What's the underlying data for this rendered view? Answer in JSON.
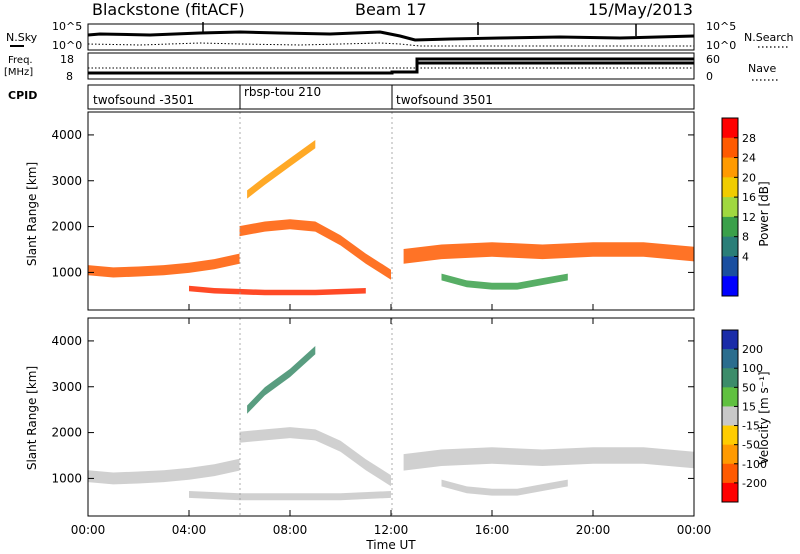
{
  "header": {
    "station": "Blackstone (fitACF)",
    "beam": "Beam 17",
    "date": "15/May/2013"
  },
  "noise_panel": {
    "left_label": "N.Sky",
    "right_label": "N.Search",
    "left_ticks": [
      "10^5",
      "10^0"
    ],
    "right_ticks": [
      "10^5",
      "10^0"
    ]
  },
  "freq_panel": {
    "label_line1": "Freq.",
    "label_line2": "[MHz]",
    "right_label": "Nave",
    "left_ticks": [
      "18",
      "8"
    ],
    "right_ticks": [
      "60",
      "0"
    ]
  },
  "cpid": {
    "label": "CPID",
    "segments": [
      {
        "name": "twofsound -3501",
        "start": "00:00",
        "end": "06:00"
      },
      {
        "name": "rbsp-tou 210",
        "start": "06:00",
        "end": "12:00"
      },
      {
        "name": "twofsound 3501",
        "start": "12:00",
        "end": "24:00"
      }
    ]
  },
  "x_axis": {
    "label": "Time UT",
    "ticks": [
      "00:00",
      "04:00",
      "08:00",
      "12:00",
      "16:00",
      "20:00",
      "00:00"
    ]
  },
  "colorbars": {
    "power": {
      "label": "Power [dB]",
      "ticks": [
        "28",
        "24",
        "20",
        "16",
        "12",
        "8",
        "4"
      ],
      "colors": [
        "#ff0000",
        "#ff5a00",
        "#ff9a00",
        "#f0cc00",
        "#a0d840",
        "#3aa04a",
        "#2a7e78",
        "#1a4fa0",
        "#0000ff"
      ]
    },
    "velocity": {
      "label": "Velocity [m s⁻¹]",
      "ticks": [
        "200",
        "100",
        "50",
        "15",
        "-15",
        "-50",
        "-100",
        "-200"
      ],
      "colors": [
        "#1a2ca8",
        "#2b6d8e",
        "#3c8c6a",
        "#60c040",
        "#c8c8c8",
        "#ffcc00",
        "#ff9a00",
        "#ff5a00",
        "#ff0000"
      ]
    }
  },
  "chart_data": [
    {
      "type": "heatmap",
      "name": "power",
      "ylabel": "Slant Range [km]",
      "xlabel": "",
      "xlim": [
        0,
        24
      ],
      "ylim": [
        180,
        4500
      ],
      "yticks": [
        1000,
        2000,
        3000,
        4000
      ],
      "bands": [
        {
          "t": [
            0,
            1,
            2,
            3,
            4,
            5,
            6
          ],
          "r": [
            1050,
            1000,
            1020,
            1050,
            1100,
            1180,
            1300
          ],
          "width": 220,
          "color": "#ff5a00"
        },
        {
          "t": [
            6,
            7,
            8,
            9,
            10,
            11,
            12
          ],
          "r": [
            1900,
            2000,
            2050,
            2000,
            1700,
            1300,
            950
          ],
          "width": 220,
          "color": "#ff5a00"
        },
        {
          "t": [
            6.3,
            7,
            8,
            9
          ],
          "r": [
            2700,
            3000,
            3400,
            3800
          ],
          "width": 180,
          "color": "#ff9a00"
        },
        {
          "t": [
            4,
            5,
            6,
            7,
            8,
            9,
            10,
            11
          ],
          "r": [
            650,
            600,
            580,
            560,
            560,
            560,
            580,
            600
          ],
          "width": 120,
          "color": "#ff2a00"
        },
        {
          "t": [
            12.5,
            14,
            16,
            18,
            20,
            22,
            24
          ],
          "r": [
            1350,
            1450,
            1500,
            1450,
            1500,
            1500,
            1400
          ],
          "width": 320,
          "color": "#ff5a00"
        },
        {
          "t": [
            14,
            15,
            16,
            17,
            18,
            19
          ],
          "r": [
            900,
            750,
            700,
            700,
            800,
            900
          ],
          "width": 150,
          "color": "#3aa04a"
        }
      ]
    },
    {
      "type": "heatmap",
      "name": "velocity",
      "ylabel": "Slant Range [km]",
      "xlabel": "Time UT",
      "xlim": [
        0,
        24
      ],
      "ylim": [
        180,
        4500
      ],
      "yticks": [
        1000,
        2000,
        3000,
        4000
      ],
      "bands": [
        {
          "t": [
            0,
            1,
            2,
            3,
            4,
            5,
            6
          ],
          "r": [
            1050,
            1000,
            1020,
            1050,
            1100,
            1180,
            1300
          ],
          "width": 260,
          "color": "#c8c8c8"
        },
        {
          "t": [
            6,
            7,
            8,
            9,
            10,
            11,
            12
          ],
          "r": [
            1900,
            1950,
            2000,
            1950,
            1700,
            1300,
            950
          ],
          "width": 240,
          "color": "#c8c8c8"
        },
        {
          "t": [
            6.3,
            7,
            8,
            9
          ],
          "r": [
            2500,
            2900,
            3300,
            3800
          ],
          "width": 180,
          "color": "#3c8c6a"
        },
        {
          "t": [
            4,
            6,
            8,
            10,
            12
          ],
          "r": [
            650,
            600,
            600,
            600,
            650
          ],
          "width": 150,
          "color": "#c8c8c8"
        },
        {
          "t": [
            12.5,
            14,
            16,
            18,
            20,
            22,
            24
          ],
          "r": [
            1350,
            1450,
            1500,
            1450,
            1500,
            1500,
            1400
          ],
          "width": 360,
          "color": "#c8c8c8"
        },
        {
          "t": [
            14,
            15,
            16,
            17,
            18,
            19
          ],
          "r": [
            900,
            750,
            700,
            700,
            800,
            900
          ],
          "width": 150,
          "color": "#c8c8c8"
        }
      ]
    }
  ]
}
